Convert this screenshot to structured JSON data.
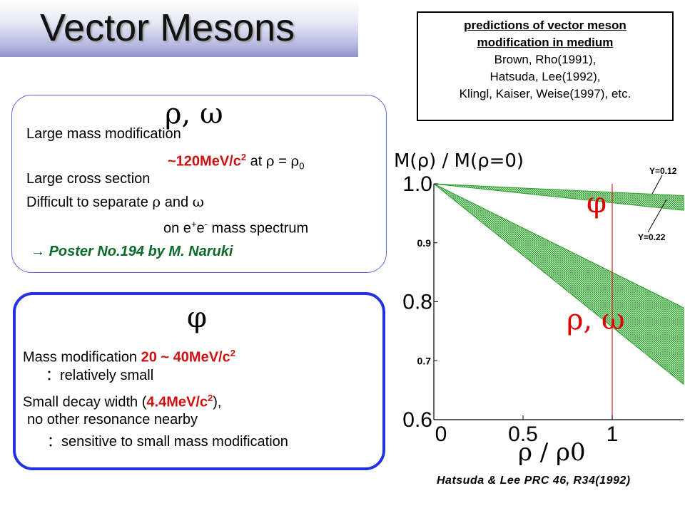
{
  "title": "Vector Mesons",
  "predictions": {
    "heading_line1": "predictions of vector meson",
    "heading_line2": "modification in medium",
    "refs": [
      "Brown, Rho(1991),",
      "Hatsuda, Lee(1992),",
      "Klingl, Kaiser, Weise(1997), etc."
    ]
  },
  "rho_box": {
    "heading": "ρ, ω",
    "line1": "Large mass modification",
    "line2_value": "~120MeV/c",
    "line2_sup": "2",
    "line2_at": " at ",
    "line2_rho": "ρ",
    "line2_eq": " = ",
    "line2_rho0": "ρ",
    "line2_sub": "0",
    "line3": "Large cross section",
    "line4a": "Difficult to separate ",
    "line4_rho": "ρ",
    "line4b": " and ",
    "line4_omega": "ω",
    "line5a": "on e",
    "line5_sup1": "+",
    "line5b": "e",
    "line5_sup2": "-",
    "line5c": " mass spectrum",
    "poster_arrow": "→",
    "poster": "Poster No.194 by M. Naruki"
  },
  "phi_box": {
    "heading": "φ",
    "line1a": "Mass modification ",
    "line1_value": "20 ~ 40MeV/c",
    "line1_sup": "2",
    "line2": "：relatively small",
    "line3a": "Small decay width (",
    "line3_value": "4.4MeV/c",
    "line3_sup": "2",
    "line3b": "),",
    "line4": "no other resonance nearby",
    "line5": "：sensitive to small mass modification"
  },
  "chart_data": {
    "type": "area",
    "ylabel": "M(ρ) / M(ρ=0)",
    "xlabel": "ρ / ρ0",
    "xlim": [
      0,
      1.4
    ],
    "ylim": [
      0.6,
      1.0
    ],
    "x_ticks": [
      "0",
      "0.5",
      "1"
    ],
    "y_ticks_major": [
      "0.6",
      "0.8",
      "1.0"
    ],
    "y_ticks_minor": [
      "0.7",
      "0.9"
    ],
    "bands": [
      {
        "name": "φ",
        "x": [
          0,
          1.4
        ],
        "upper": [
          1.0,
          0.98
        ],
        "lower": [
          1.0,
          0.955
        ]
      },
      {
        "name": "ρ, ω",
        "x": [
          0,
          1.4
        ],
        "upper": [
          1.0,
          0.79
        ],
        "lower": [
          1.0,
          0.66
        ]
      }
    ],
    "vline_x": 1.0,
    "annotations": [
      "Y=0.12",
      "Y=0.22"
    ],
    "citation": "Hatsuda & Lee PRC 46, R34(1992)",
    "colors": {
      "band": "#2aa02a",
      "vline": "#dd2222",
      "label": "#dd0000"
    }
  }
}
